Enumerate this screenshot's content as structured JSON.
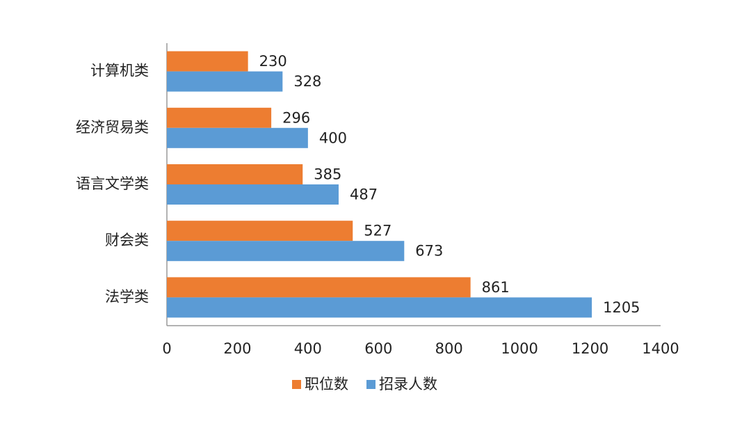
{
  "chart_data": {
    "type": "hbar",
    "categories": [
      "计算机类",
      "经济贸易类",
      "语言文学类",
      "财会类",
      "法学类"
    ],
    "series": [
      {
        "name": "职位数",
        "color": "#ed7d31",
        "values": [
          230,
          296,
          385,
          527,
          861
        ]
      },
      {
        "name": "招录人数",
        "color": "#5b9bd5",
        "values": [
          328,
          400,
          487,
          673,
          1205
        ]
      }
    ],
    "xlim": [
      0,
      1400
    ],
    "xticks": [
      0,
      200,
      400,
      600,
      800,
      1000,
      1200,
      1400
    ],
    "legend": "bottom"
  }
}
